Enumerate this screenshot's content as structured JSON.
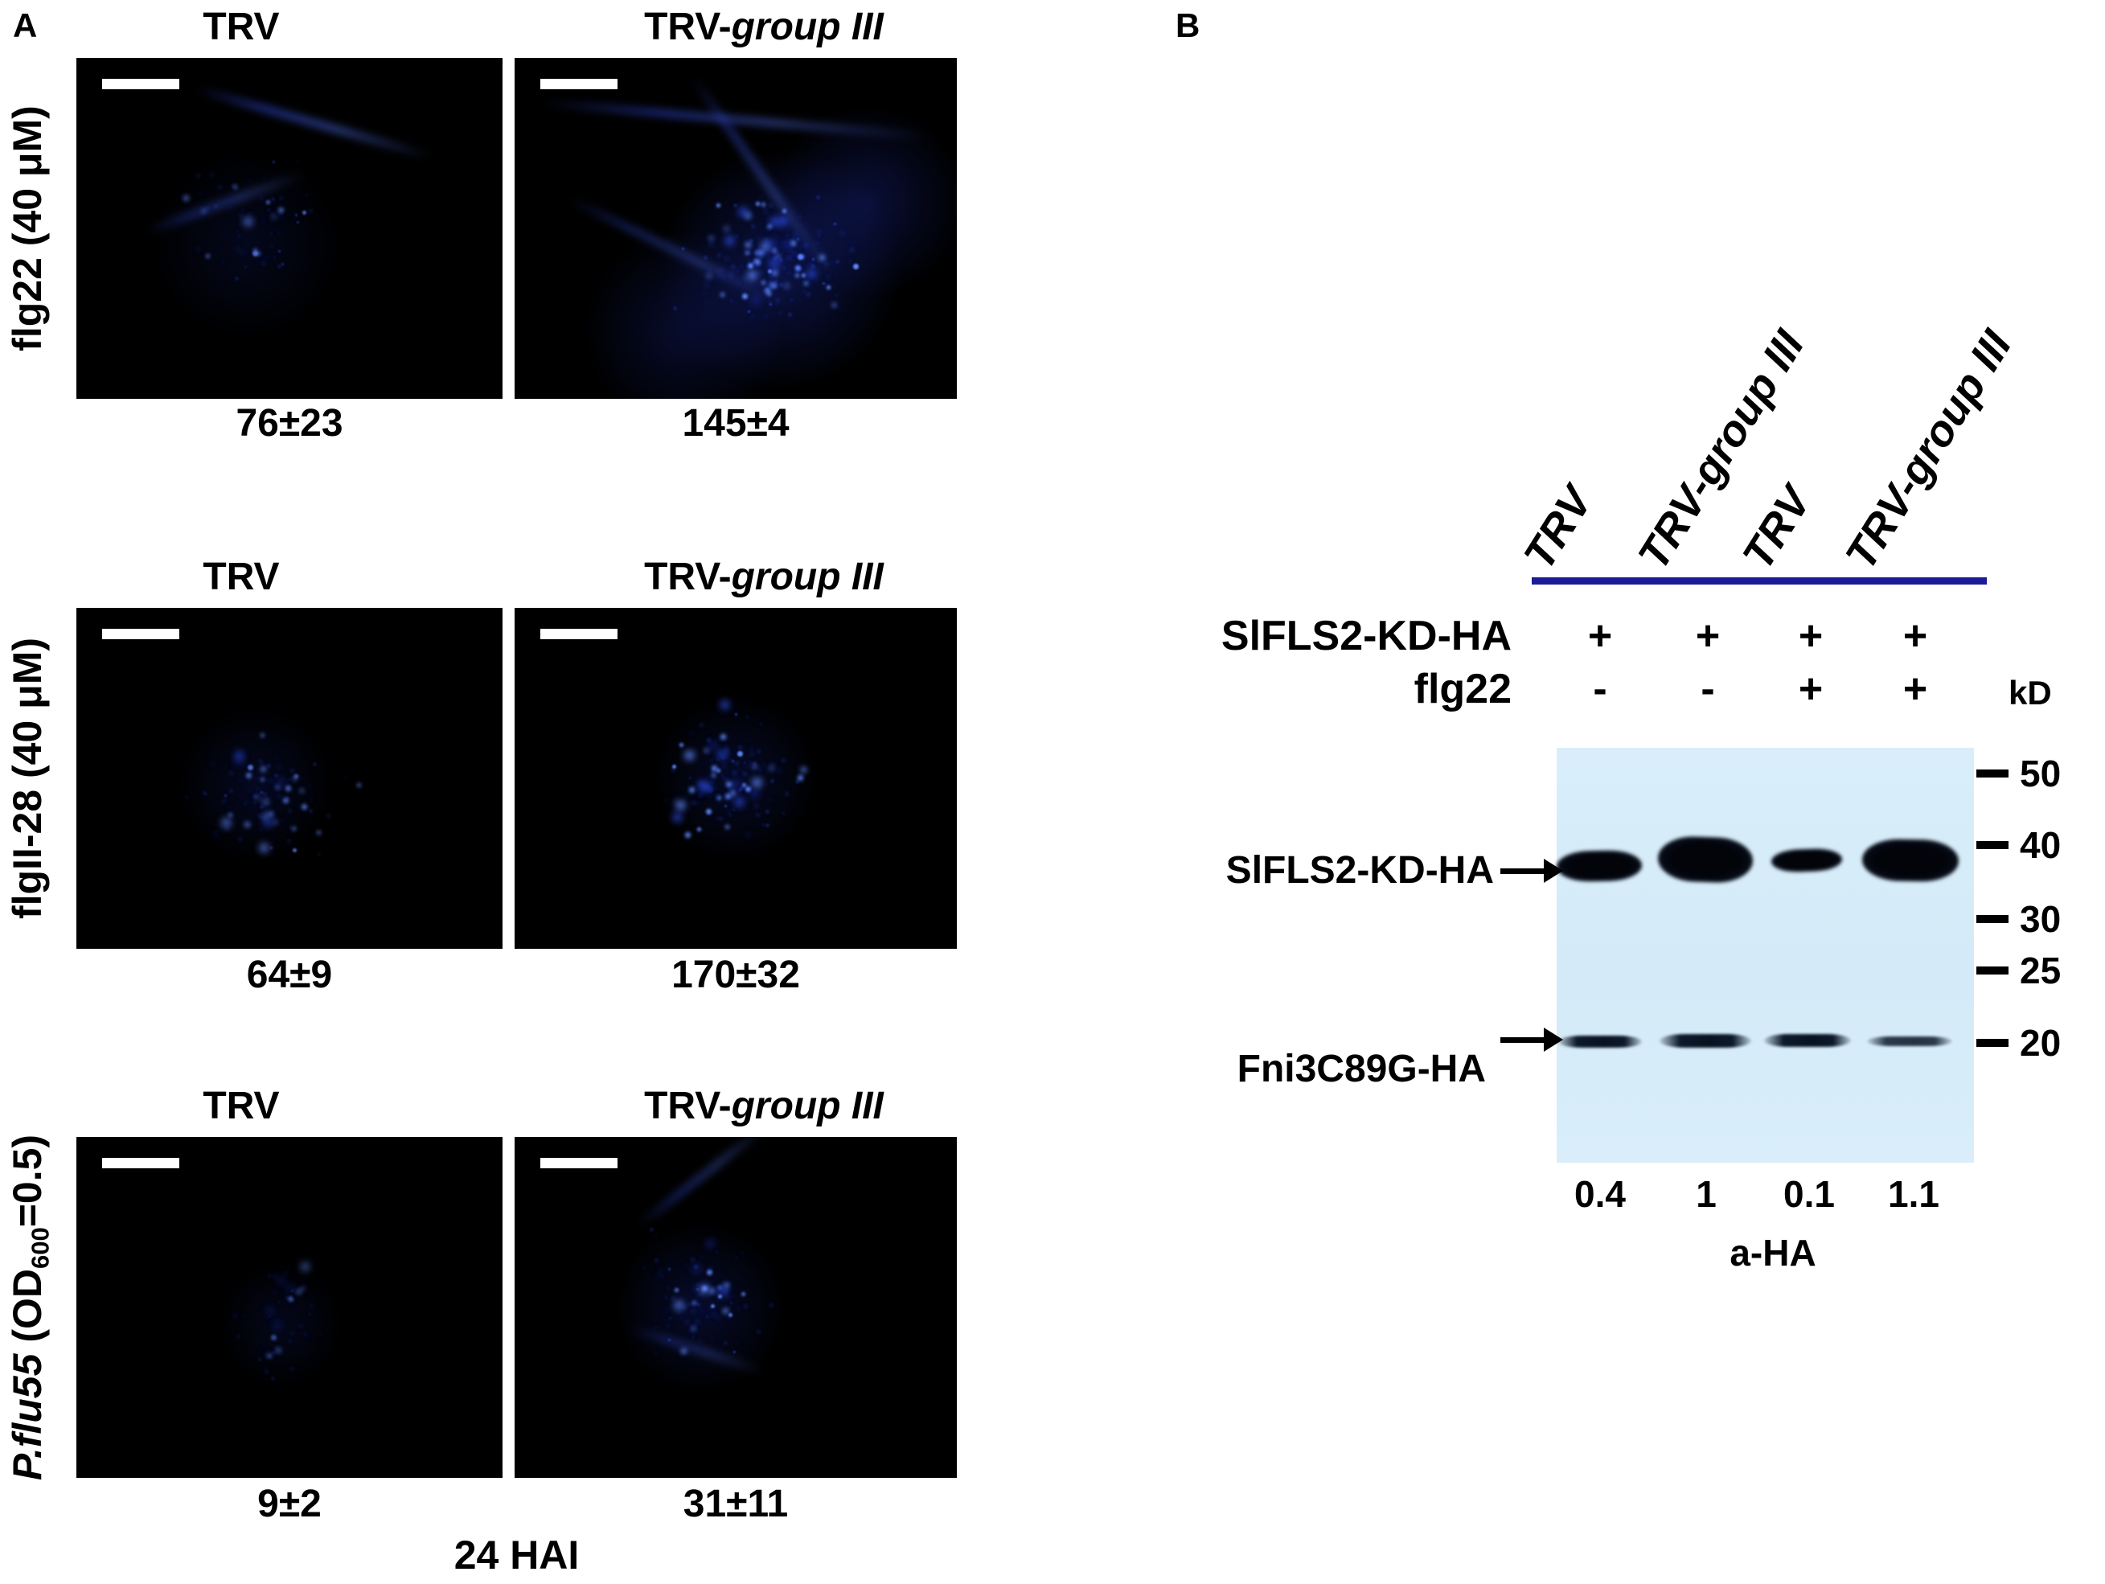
{
  "panel_a": {
    "label": "A",
    "footer": "24 HAI",
    "rows": [
      {
        "label": {
          "italic": "",
          "text": "flg22 (40 μM)",
          "sub": "",
          "tail": ""
        },
        "columns": [
          {
            "title_prefix": "TRV",
            "title_italic": "",
            "value": "76±23"
          },
          {
            "title_prefix": "TRV-",
            "title_italic": "group III",
            "value": "145±4"
          }
        ]
      },
      {
        "label": {
          "italic": "",
          "text": "flgII-28 (40 μM)",
          "sub": "",
          "tail": ""
        },
        "columns": [
          {
            "title_prefix": "TRV",
            "title_italic": "",
            "value": "64±9"
          },
          {
            "title_prefix": "TRV-",
            "title_italic": "group III",
            "value": "170±32"
          }
        ]
      },
      {
        "label": {
          "italic": "P.flu55",
          "text": " (OD",
          "sub": "600",
          "tail": "=0.5)"
        },
        "columns": [
          {
            "title_prefix": "TRV",
            "title_italic": "",
            "value": "9±2"
          },
          {
            "title_prefix": "TRV-",
            "title_italic": "group III",
            "value": "31±11"
          }
        ]
      }
    ]
  },
  "panel_b": {
    "label": "B",
    "lane_labels": [
      "TRV",
      "TRV-group III",
      "TRV",
      "TRV-group III"
    ],
    "conditions": [
      {
        "label": "SlFLS2-KD-HA",
        "values": [
          "+",
          "+",
          "+",
          "+"
        ]
      },
      {
        "label": "flg22",
        "values": [
          "-",
          "-",
          "+",
          "+"
        ]
      }
    ],
    "unit": "kD",
    "markers": [
      "50",
      "40",
      "30",
      "25",
      "20"
    ],
    "band_labels": [
      "SlFLS2-KD-HA",
      "Fni3C89G-HA"
    ],
    "quantification": [
      "0.4",
      "1",
      "0.1",
      "1.1"
    ],
    "antibody": "a-HA"
  }
}
